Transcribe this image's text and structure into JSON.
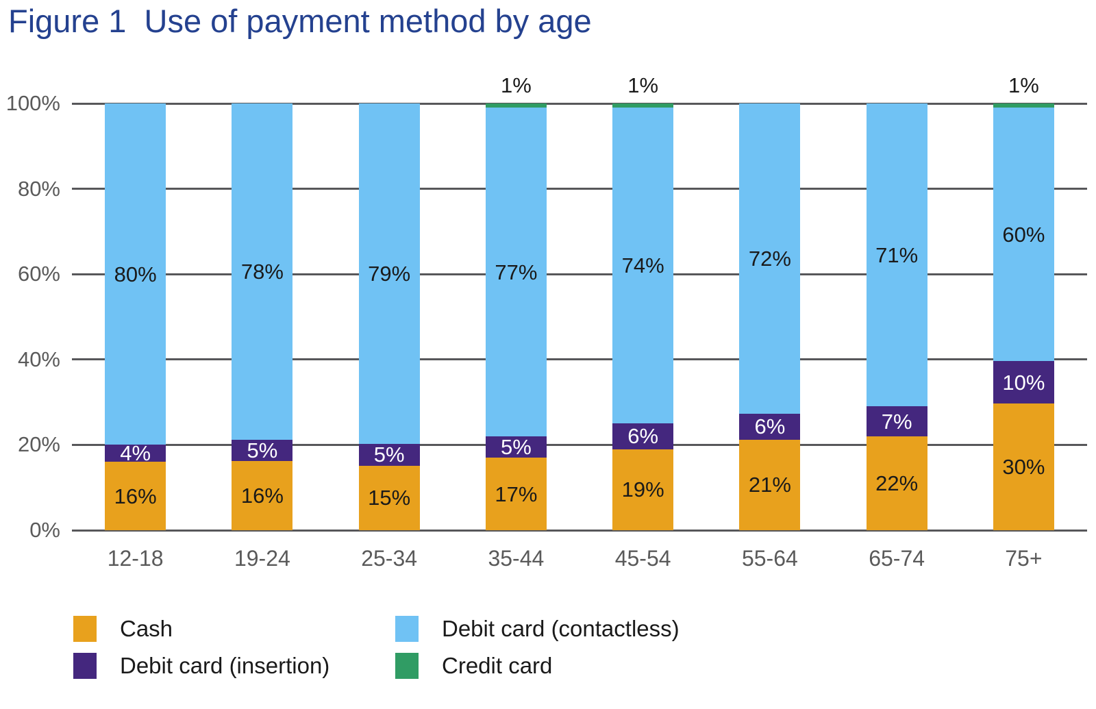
{
  "title": "Figure 1  Use of payment method by age",
  "chart_data": {
    "type": "bar",
    "subtype": "stacked-percentage",
    "title": "Figure 1  Use of payment method by age",
    "categories": [
      "12-18",
      "19-24",
      "25-34",
      "35-44",
      "45-54",
      "55-64",
      "65-74",
      "75+"
    ],
    "series": [
      {
        "name": "Cash",
        "color": "#E8A11D",
        "label_color": "#1a1a1a",
        "values": [
          16,
          16,
          15,
          17,
          19,
          21,
          22,
          30
        ]
      },
      {
        "name": "Debit card (insertion)",
        "color": "#44277E",
        "label_color": "#ffffff",
        "values": [
          4,
          5,
          5,
          5,
          6,
          6,
          7,
          10
        ]
      },
      {
        "name": "Debit card (contactless)",
        "color": "#70C2F4",
        "label_color": "#1a1a1a",
        "values": [
          80,
          78,
          79,
          77,
          74,
          72,
          71,
          60
        ]
      },
      {
        "name": "Credit card",
        "color": "#309C64",
        "label_color": "#1a1a1a",
        "values": [
          0,
          0,
          0,
          1,
          1,
          0,
          0,
          1
        ]
      }
    ],
    "value_label_suffix": "%",
    "yticks": [
      "100%",
      "80%",
      "60%",
      "40%",
      "20%",
      "0%"
    ],
    "ytick_percents": [
      100,
      80,
      60,
      40,
      20,
      0
    ],
    "ylim": [
      0,
      100
    ],
    "grid": true,
    "gridline_color": "#57575a",
    "axis_label_color": "#5a5a5a",
    "title_color": "#24418F",
    "legend_position": "bottom",
    "legend_order_row_major": [
      0,
      2,
      1,
      3
    ]
  }
}
